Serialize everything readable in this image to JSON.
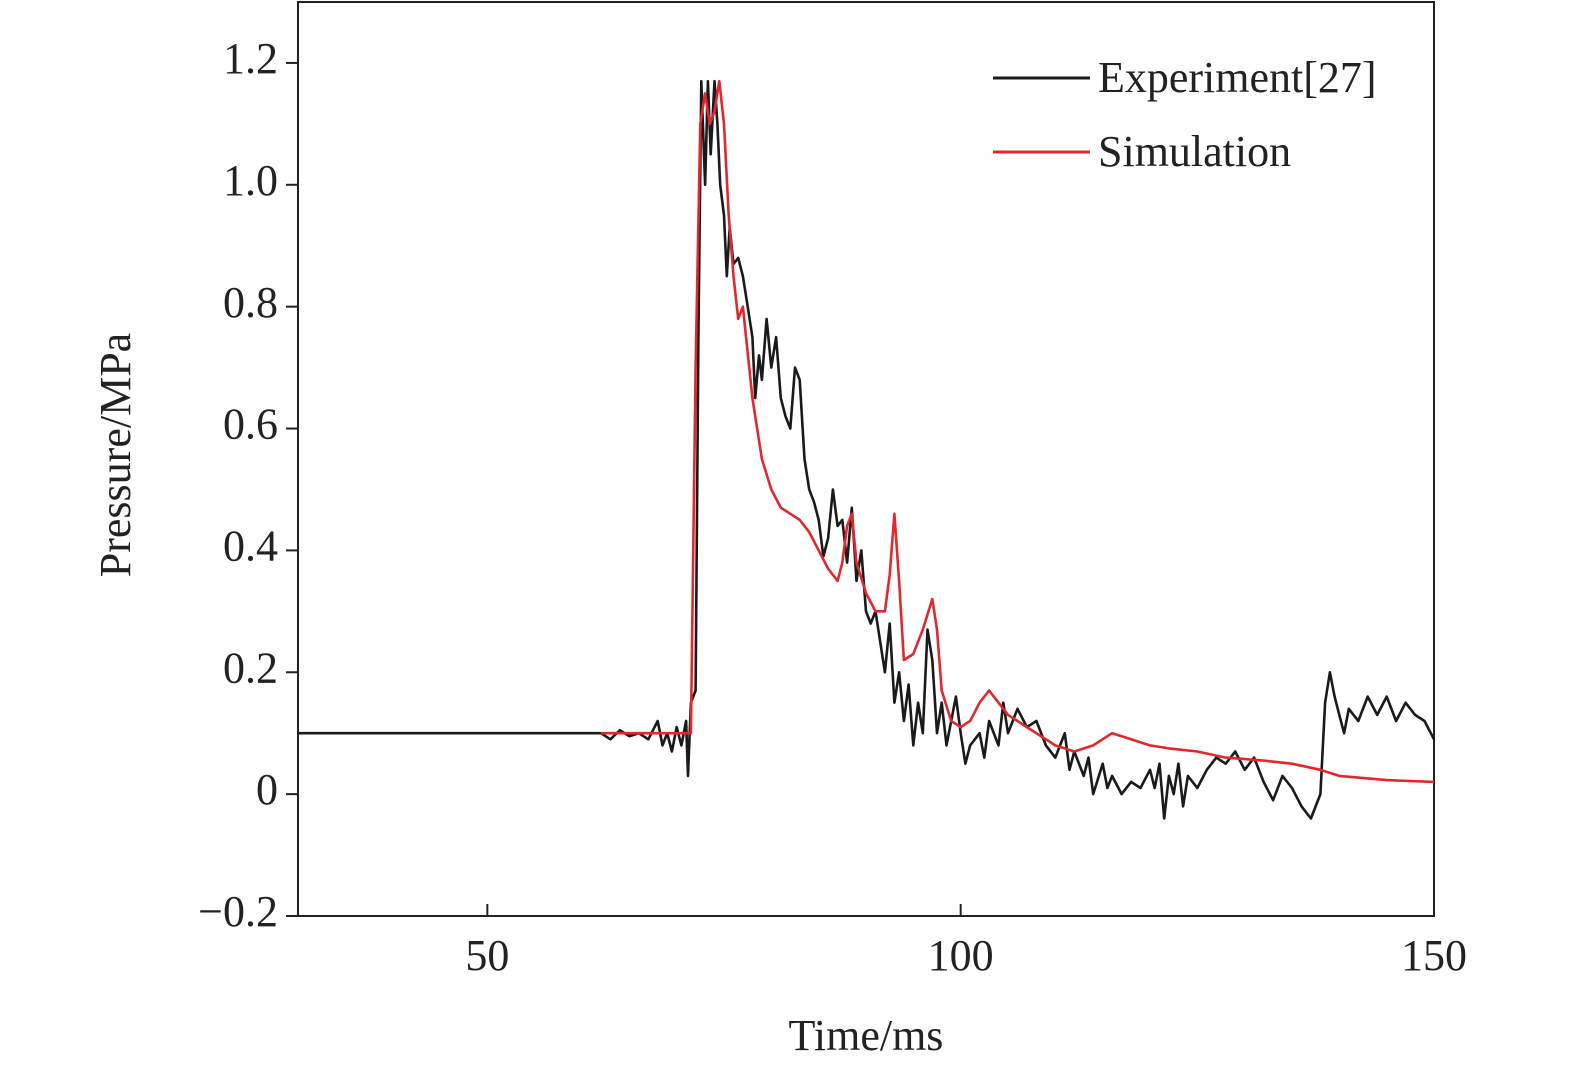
{
  "chart_data": {
    "type": "line",
    "x_label": "Time/ms",
    "y_label": "Pressure/MPa",
    "xlim": [
      30,
      150
    ],
    "xticks": [
      50,
      100,
      150
    ],
    "ylim": [
      -0.2,
      1.3
    ],
    "yticks": [
      {
        "value": -0.2,
        "label": "−0.2"
      },
      0,
      0.2,
      0.4,
      0.6,
      0.8,
      {
        "value": 1,
        "label": "1.0"
      },
      1.2
    ],
    "legend": "top-right",
    "series": [
      {
        "name": "Experiment[27]",
        "color": "#1a1a1a",
        "x": [
          30,
          62,
          63,
          64,
          65,
          66,
          67,
          68,
          68.5,
          69,
          69.5,
          70,
          70.5,
          71,
          71.2,
          71.5,
          72,
          72.3,
          72.6,
          73,
          73.3,
          73.6,
          74,
          74.3,
          74.6,
          75,
          75.3,
          75.6,
          76,
          76.5,
          77,
          77.5,
          78,
          78.3,
          78.7,
          79,
          79.5,
          80,
          80.5,
          81,
          81.5,
          82,
          82.5,
          83,
          83.5,
          84,
          84.5,
          85,
          85.5,
          86,
          86.5,
          87,
          87.5,
          88,
          88.5,
          89,
          89.5,
          90,
          90.5,
          91,
          91.5,
          92,
          92.5,
          93,
          93.5,
          94,
          94.5,
          95,
          95.5,
          96,
          96.5,
          97,
          97.5,
          98,
          98.5,
          99,
          99.5,
          100,
          100.5,
          101,
          102,
          102.5,
          103,
          104,
          104.5,
          105,
          106,
          107,
          108,
          109,
          110,
          111,
          111.5,
          112,
          113,
          113.5,
          114,
          115,
          115.5,
          116,
          117,
          118,
          119,
          120,
          120.5,
          121,
          121.5,
          122,
          122.5,
          123,
          123.5,
          124,
          125,
          126,
          127,
          128,
          129,
          130,
          131,
          132,
          133,
          134,
          135,
          136,
          137,
          138,
          138.5,
          139,
          139.5,
          140,
          140.5,
          141,
          142,
          143,
          144,
          145,
          146,
          147,
          148,
          149,
          150
        ],
        "values": [
          0.1,
          0.1,
          0.09,
          0.105,
          0.095,
          0.1,
          0.09,
          0.12,
          0.08,
          0.1,
          0.07,
          0.11,
          0.08,
          0.12,
          0.03,
          0.15,
          0.17,
          0.75,
          1.17,
          1.0,
          1.17,
          1.05,
          1.17,
          1.1,
          1.0,
          0.95,
          0.85,
          0.93,
          0.87,
          0.88,
          0.85,
          0.8,
          0.75,
          0.65,
          0.72,
          0.68,
          0.78,
          0.7,
          0.75,
          0.65,
          0.62,
          0.6,
          0.7,
          0.68,
          0.55,
          0.5,
          0.48,
          0.45,
          0.39,
          0.42,
          0.5,
          0.44,
          0.45,
          0.38,
          0.47,
          0.35,
          0.4,
          0.3,
          0.28,
          0.3,
          0.25,
          0.2,
          0.28,
          0.15,
          0.2,
          0.12,
          0.18,
          0.08,
          0.15,
          0.1,
          0.27,
          0.22,
          0.1,
          0.15,
          0.08,
          0.12,
          0.16,
          0.1,
          0.05,
          0.08,
          0.1,
          0.06,
          0.12,
          0.08,
          0.15,
          0.1,
          0.14,
          0.11,
          0.12,
          0.08,
          0.06,
          0.1,
          0.04,
          0.07,
          0.03,
          0.06,
          0.0,
          0.05,
          0.01,
          0.03,
          0.0,
          0.02,
          0.01,
          0.04,
          0.01,
          0.05,
          -0.04,
          0.03,
          0.0,
          0.05,
          -0.02,
          0.03,
          0.01,
          0.04,
          0.06,
          0.05,
          0.07,
          0.04,
          0.06,
          0.02,
          -0.01,
          0.03,
          0.01,
          -0.02,
          -0.04,
          0.0,
          0.15,
          0.2,
          0.16,
          0.13,
          0.1,
          0.14,
          0.12,
          0.16,
          0.13,
          0.16,
          0.12,
          0.15,
          0.13,
          0.12,
          0.09
        ]
      },
      {
        "name": "Simulation",
        "color": "#e0282e",
        "x": [
          62,
          71.5,
          72,
          72.5,
          73,
          73.5,
          74,
          74.5,
          75,
          75.5,
          76,
          76.5,
          77,
          78,
          79,
          80,
          81,
          82,
          83,
          84,
          85,
          86,
          87,
          87.5,
          88,
          88.5,
          89,
          90,
          91,
          92,
          92.5,
          93,
          93.5,
          94,
          95,
          96,
          97,
          97.5,
          98,
          99,
          100,
          101,
          102,
          103,
          104,
          105,
          107,
          110,
          112,
          114,
          116,
          118,
          120,
          122,
          125,
          128,
          132,
          135,
          138,
          140,
          145,
          150
        ],
        "values": [
          0.1,
          0.1,
          0.7,
          1.1,
          1.15,
          1.1,
          1.12,
          1.17,
          1.1,
          0.95,
          0.85,
          0.78,
          0.8,
          0.65,
          0.55,
          0.5,
          0.47,
          0.46,
          0.45,
          0.43,
          0.4,
          0.37,
          0.35,
          0.38,
          0.44,
          0.46,
          0.38,
          0.33,
          0.3,
          0.3,
          0.36,
          0.46,
          0.35,
          0.22,
          0.23,
          0.27,
          0.32,
          0.27,
          0.17,
          0.12,
          0.11,
          0.12,
          0.15,
          0.17,
          0.15,
          0.13,
          0.11,
          0.08,
          0.07,
          0.08,
          0.1,
          0.09,
          0.08,
          0.075,
          0.07,
          0.06,
          0.055,
          0.05,
          0.04,
          0.03,
          0.023,
          0.02
        ]
      }
    ]
  }
}
